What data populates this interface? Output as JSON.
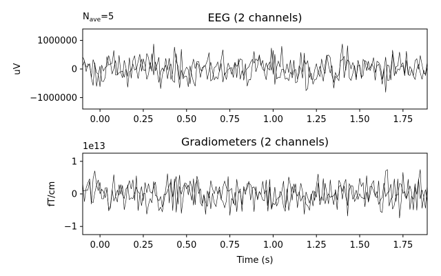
{
  "chart_data": [
    {
      "type": "line",
      "title": "EEG (2 channels)",
      "annotation_prefix": "N",
      "annotation_subscript": "ave",
      "annotation_suffix": "=5",
      "xlabel": "",
      "ylabel": "uV",
      "xlim": [
        -0.1,
        1.89
      ],
      "ylim": [
        -1400000,
        1400000
      ],
      "x_ticks": [
        0.0,
        0.25,
        0.5,
        0.75,
        1.0,
        1.25,
        1.5,
        1.75
      ],
      "x_tick_labels": [
        "0.00",
        "0.25",
        "0.50",
        "0.75",
        "1.00",
        "1.25",
        "1.50",
        "1.75"
      ],
      "y_ticks": [
        1000000,
        0,
        -1000000
      ],
      "y_tick_labels": [
        "1000000",
        "0",
        "−1000000"
      ],
      "series_count": 2,
      "samples_per_series": 200,
      "noise_amplitude": 600000,
      "offset_label": "",
      "color": "#000000"
    },
    {
      "type": "line",
      "title": "Gradiometers (2 channels)",
      "xlabel": "Time (s)",
      "ylabel": "fT/cm",
      "xlim": [
        -0.1,
        1.89
      ],
      "ylim": [
        -1.25,
        1.25
      ],
      "x_ticks": [
        0.0,
        0.25,
        0.5,
        0.75,
        1.0,
        1.25,
        1.5,
        1.75
      ],
      "x_tick_labels": [
        "0.00",
        "0.25",
        "0.50",
        "0.75",
        "1.00",
        "1.25",
        "1.50",
        "1.75"
      ],
      "y_ticks": [
        1,
        0,
        -1
      ],
      "y_tick_labels": [
        "1",
        "0",
        "−1"
      ],
      "offset_label": "1e13",
      "series_count": 2,
      "samples_per_series": 200,
      "noise_amplitude": 0.55,
      "color": "#000000"
    }
  ]
}
